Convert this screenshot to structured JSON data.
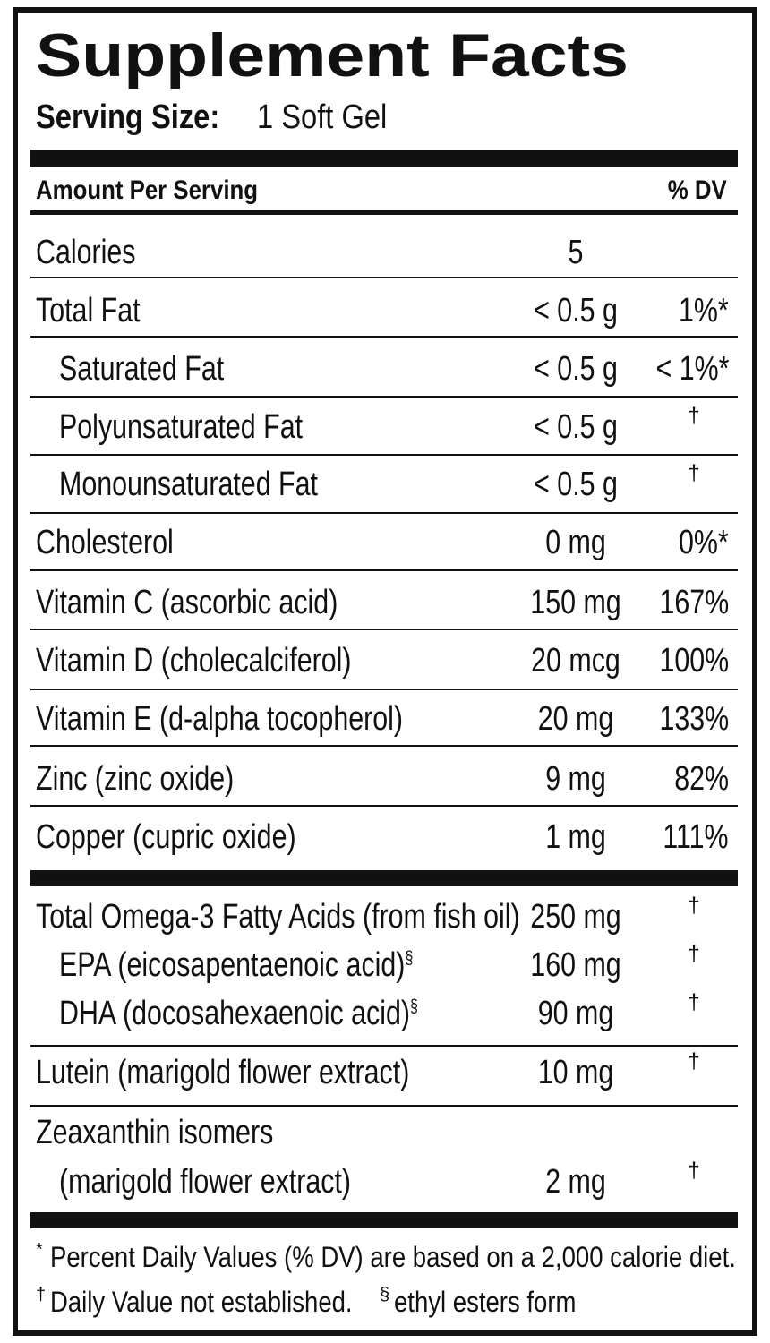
{
  "header": {
    "title": "Supplement Facts",
    "serving_label": "Serving Size:",
    "serving_value": "1 Soft Gel"
  },
  "table": {
    "columns": [
      "Amount Per Serving",
      "% DV"
    ],
    "rows": [
      {
        "name": "Calories",
        "amount": "5"
      },
      {
        "name": "Total Fat",
        "amount": "< 0.5 g",
        "dv": "1%*"
      },
      {
        "name": "Saturated Fat",
        "amount": "< 0.5 g",
        "dv": "< 1%*"
      },
      {
        "name": "Polyunsaturated Fat",
        "amount": "< 0.5 g",
        "dv": "†"
      },
      {
        "name": "Monounsaturated Fat",
        "amount": "< 0.5 g",
        "dv": "†"
      },
      {
        "name": "Cholesterol",
        "amount": "0 mg",
        "dv": "0%*"
      },
      {
        "name": "Vitamin C (ascorbic acid)",
        "amount": "150 mg",
        "dv": "167%"
      },
      {
        "name": "Vitamin D (cholecalciferol)",
        "amount": "20 mcg",
        "dv": "100%"
      },
      {
        "name": "Vitamin E (d-alpha tocopherol)",
        "amount": "20 mg",
        "dv": "133%"
      },
      {
        "name": "Zinc (zinc oxide)",
        "amount": "9 mg",
        "dv": "82%"
      },
      {
        "name": "Copper (cupric oxide)",
        "amount": "1 mg",
        "dv": "111%"
      },
      {
        "name": "Total Omega-3 Fatty Acids (from fish oil)",
        "amount": "250 mg",
        "dv": "†"
      },
      {
        "name": "EPA (eicosapentaenoic acid)",
        "note": "§",
        "amount": "160 mg",
        "dv": "†"
      },
      {
        "name": "DHA (docosahexaenoic acid)",
        "note": "§",
        "amount": "90 mg",
        "dv": "†"
      },
      {
        "name": "Lutein (marigold flower extract)",
        "amount": "10 mg",
        "dv": "†"
      },
      {
        "name": "Zeaxanthin isomers",
        "name_cont": "(marigold flower extract)",
        "amount": "2 mg",
        "dv": "†"
      }
    ]
  },
  "footnotes": [
    {
      "mark": "*",
      "text": "Percent Daily Values (% DV) are based on a 2,000 calorie diet."
    },
    {
      "mark": "†",
      "text": "Daily Value not established."
    },
    {
      "mark": "§",
      "text": "ethyl esters form"
    }
  ]
}
